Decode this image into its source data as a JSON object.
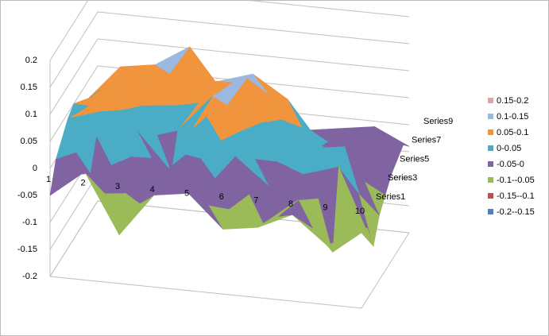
{
  "chart_data": {
    "type": "surface",
    "categories": [
      "1",
      "2",
      "3",
      "4",
      "5",
      "6",
      "7",
      "8",
      "9",
      "10"
    ],
    "series": [
      {
        "name": "Series1",
        "values": [
          -0.05,
          0.0,
          -0.11,
          -0.03,
          -0.02,
          -0.08,
          -0.07,
          -0.04,
          -0.09,
          -0.06
        ]
      },
      {
        "values": [
          0.0,
          -0.02,
          -0.05,
          -0.04,
          -0.03,
          -0.06,
          -0.08,
          -0.03,
          -0.12,
          -0.07
        ]
      },
      {
        "name": "Series3",
        "values": [
          0.02,
          0.03,
          0.0,
          -0.02,
          0.01,
          0.02,
          -0.03,
          0.0,
          0.02,
          -0.12
        ]
      },
      {
        "values": [
          0.04,
          0.06,
          0.03,
          -0.04,
          0.07,
          0.05,
          0.0,
          0.03,
          0.04,
          -0.08
        ]
      },
      {
        "name": "Series5",
        "values": [
          0.05,
          0.08,
          0.06,
          0.02,
          0.09,
          0.13,
          0.06,
          0.02,
          -0.02,
          -0.06
        ]
      },
      {
        "values": [
          0.03,
          0.07,
          0.09,
          0.05,
          0.1,
          0.12,
          0.08,
          0.0,
          -0.03,
          -0.04
        ]
      },
      {
        "name": "Series7",
        "values": [
          0.02,
          0.09,
          0.1,
          0.14,
          0.06,
          0.04,
          0.01,
          -0.01,
          -0.02,
          -0.03
        ]
      },
      {
        "values": [
          0.0,
          0.06,
          0.08,
          0.05,
          0.03,
          0.02,
          -0.02,
          -0.01,
          -0.03,
          -0.02
        ]
      },
      {
        "name": "Series9",
        "values": [
          -0.02,
          0.03,
          0.04,
          0.02,
          0.0,
          -0.01,
          -0.03,
          -0.02,
          -0.01,
          -0.04
        ]
      }
    ],
    "ylim": [
      -0.2,
      0.2
    ],
    "yticks": [
      -0.2,
      -0.15,
      -0.1,
      -0.05,
      0,
      0.05,
      0.1,
      0.15,
      0.2
    ],
    "grid": true,
    "legend": "right",
    "bands": [
      {
        "from": 0.15,
        "to": 0.2,
        "label": "0.15-0.2",
        "color": "#e3a3a1"
      },
      {
        "from": 0.1,
        "to": 0.15,
        "label": "0.1-0.15",
        "color": "#9db8e0"
      },
      {
        "from": 0.05,
        "to": 0.1,
        "label": "0.05-0.1",
        "color": "#f0953e"
      },
      {
        "from": 0,
        "to": 0.05,
        "label": "0-0.05",
        "color": "#4bacc6"
      },
      {
        "from": -0.05,
        "to": 0,
        "label": "-0.05-0",
        "color": "#8064a2"
      },
      {
        "from": -0.1,
        "to": -0.05,
        "label": "-0.1--0.05",
        "color": "#9bbb59"
      },
      {
        "from": -0.15,
        "to": -0.1,
        "label": "-0.15--0.1",
        "color": "#c0504d"
      },
      {
        "from": -0.2,
        "to": -0.15,
        "label": "-0.2--0.15",
        "color": "#4f81bd"
      }
    ]
  }
}
